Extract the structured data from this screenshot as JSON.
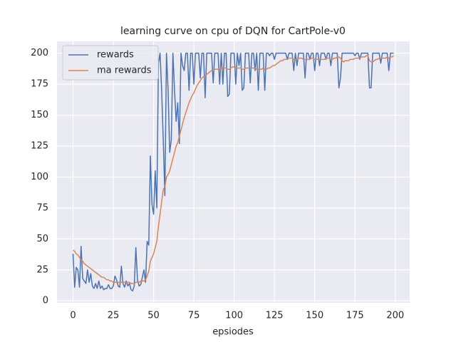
{
  "chart_data": {
    "type": "line",
    "title": "learning curve on cpu of DQN for CartPole-v0",
    "xlabel": "epsiodes",
    "x": [
      0,
      1,
      2,
      3,
      4,
      5,
      6,
      7,
      8,
      9,
      10,
      11,
      12,
      13,
      14,
      15,
      16,
      17,
      18,
      19,
      20,
      21,
      22,
      23,
      24,
      25,
      26,
      27,
      28,
      29,
      30,
      31,
      32,
      33,
      34,
      35,
      36,
      37,
      38,
      39,
      40,
      41,
      42,
      43,
      44,
      45,
      46,
      47,
      48,
      49,
      50,
      51,
      52,
      53,
      54,
      55,
      56,
      57,
      58,
      59,
      60,
      61,
      62,
      63,
      64,
      65,
      66,
      67,
      68,
      69,
      70,
      71,
      72,
      73,
      74,
      75,
      76,
      77,
      78,
      79,
      80,
      81,
      82,
      83,
      84,
      85,
      86,
      87,
      88,
      89,
      90,
      91,
      92,
      93,
      94,
      95,
      96,
      97,
      98,
      99,
      100,
      101,
      102,
      103,
      104,
      105,
      106,
      107,
      108,
      109,
      110,
      111,
      112,
      113,
      114,
      115,
      116,
      117,
      118,
      119,
      120,
      121,
      122,
      123,
      124,
      125,
      126,
      127,
      128,
      129,
      130,
      131,
      132,
      133,
      134,
      135,
      136,
      137,
      138,
      139,
      140,
      141,
      142,
      143,
      144,
      145,
      146,
      147,
      148,
      149,
      150,
      151,
      152,
      153,
      154,
      155,
      156,
      157,
      158,
      159,
      160,
      161,
      162,
      163,
      164,
      165,
      166,
      167,
      168,
      169,
      170,
      171,
      172,
      173,
      174,
      175,
      176,
      177,
      178,
      179,
      180,
      181,
      182,
      183,
      184,
      185,
      186,
      187,
      188,
      189,
      190,
      191,
      192,
      193,
      194,
      195,
      196,
      197,
      198,
      199
    ],
    "series": [
      {
        "name": "rewards",
        "color": "#4c72b0",
        "values": [
          38,
          11,
          27,
          25,
          11,
          44,
          18,
          16,
          14,
          25,
          15,
          22,
          12,
          10,
          14,
          10,
          16,
          10,
          12,
          9,
          10,
          10,
          13,
          10,
          10,
          12,
          20,
          17,
          12,
          11,
          28,
          14,
          11,
          16,
          12,
          14,
          9,
          8,
          12,
          43,
          17,
          12,
          13,
          19,
          25,
          15,
          48,
          45,
          117,
          78,
          70,
          105,
          75,
          192,
          200,
          170,
          130,
          85,
          200,
          170,
          120,
          130,
          200,
          170,
          145,
          160,
          127,
          200,
          190,
          186,
          200,
          200,
          170,
          200,
          200,
          175,
          200,
          200,
          200,
          180,
          200,
          200,
          164,
          200,
          200,
          200,
          200,
          176,
          200,
          200,
          200,
          175,
          200,
          175,
          200,
          200,
          165,
          167,
          200,
          200,
          200,
          175,
          200,
          190,
          200,
          170,
          172,
          200,
          200,
          200,
          176,
          200,
          200,
          186,
          200,
          170,
          200,
          200,
          200,
          170,
          200,
          200,
          198,
          200,
          200,
          195,
          200,
          200,
          200,
          200,
          200,
          200,
          200,
          195,
          200,
          200,
          200,
          186,
          200,
          190,
          200,
          200,
          200,
          200,
          180,
          200,
          200,
          195,
          200,
          200,
          186,
          200,
          200,
          190,
          200,
          200,
          200,
          195,
          200,
          200,
          190,
          200,
          200,
          200,
          200,
          172,
          180,
          200,
          200,
          200,
          200,
          200,
          200,
          200,
          200,
          198,
          200,
          200,
          195,
          200,
          200,
          200,
          200,
          200,
          172,
          172,
          200,
          200,
          200,
          200,
          200,
          192,
          200,
          200,
          200,
          200,
          186,
          200,
          200,
          200
        ]
      },
      {
        "name": "ma rewards",
        "color": "#dd8452",
        "values": [
          41,
          40,
          38,
          37,
          35,
          33,
          32,
          30,
          29,
          28,
          27,
          26,
          25,
          24,
          23,
          22,
          21,
          20,
          19,
          19,
          18,
          17,
          17,
          16,
          16,
          15,
          15,
          15,
          15,
          15,
          15,
          15,
          15,
          15,
          15,
          15,
          14,
          14,
          14,
          15,
          15,
          15,
          16,
          16,
          16,
          17,
          20,
          24,
          32,
          35,
          38,
          43,
          48,
          60,
          70,
          80,
          90,
          92,
          100,
          102,
          105,
          110,
          115,
          120,
          125,
          128,
          133,
          138,
          143,
          148,
          152,
          156,
          160,
          163,
          166,
          168,
          171,
          174,
          176,
          178,
          180,
          181,
          182,
          183,
          184,
          185,
          186,
          186,
          187,
          187,
          187,
          187,
          188,
          188,
          188,
          188,
          187,
          187,
          188,
          189,
          189,
          189,
          188,
          188,
          188,
          187,
          187,
          188,
          188,
          188,
          188,
          188,
          188,
          188,
          187,
          187,
          187,
          187,
          188,
          187,
          187,
          188,
          188,
          189,
          190,
          190,
          191,
          192,
          193,
          194,
          194,
          195,
          195,
          195,
          196,
          196,
          196,
          195,
          195,
          195,
          196,
          196,
          196,
          195,
          195,
          195,
          195,
          195,
          196,
          196,
          195,
          195,
          195,
          195,
          195,
          195,
          195,
          196,
          196,
          196,
          195,
          195,
          196,
          196,
          197,
          197,
          196,
          194,
          193,
          194,
          194,
          194,
          195,
          195,
          195,
          196,
          196,
          196,
          196,
          197,
          197,
          197,
          198,
          198,
          194,
          193,
          193,
          194,
          195,
          195,
          196,
          196,
          196,
          196,
          196,
          197,
          196,
          197,
          197,
          198
        ]
      }
    ],
    "xlim": [
      -9.95,
      208.95
    ],
    "ylim": [
      -1.6,
      209.6
    ],
    "xticks": [
      0,
      25,
      50,
      75,
      100,
      125,
      150,
      175,
      200
    ],
    "yticks": [
      0,
      25,
      50,
      75,
      100,
      125,
      150,
      175,
      200
    ],
    "grid": true,
    "legend": "upper left"
  }
}
